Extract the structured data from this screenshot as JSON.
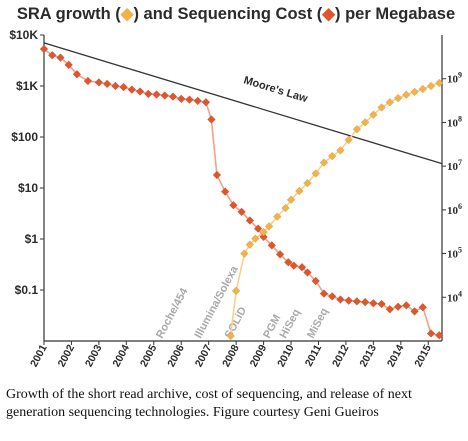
{
  "caption": "Growth of the short read archive, cost of sequencing, and release of next generation sequencing technologies. Figure courtesy Geni Gueiros",
  "chart_data": {
    "type": "line",
    "title": {
      "part1": "SRA growth (",
      "part2": ") and Sequencing Cost (",
      "part3": ") per Megabase"
    },
    "y_left_scale": "log",
    "y_left_range": [
      0.01,
      10000
    ],
    "y_left_ticks": [
      {
        "value": 10000,
        "label": "$10K"
      },
      {
        "value": 1000,
        "label": "$1K"
      },
      {
        "value": 100,
        "label": "$100"
      },
      {
        "value": 10,
        "label": "$10"
      },
      {
        "value": 1,
        "label": "$1"
      },
      {
        "value": 0.1,
        "label": "$0.1"
      }
    ],
    "y_right_scale": "log",
    "y_right_range": [
      1000,
      10000000000
    ],
    "y_right_ticks": [
      {
        "value": 10000,
        "base": "10",
        "exp": "4"
      },
      {
        "value": 100000,
        "base": "10",
        "exp": "5"
      },
      {
        "value": 1000000,
        "base": "10",
        "exp": "6"
      },
      {
        "value": 10000000,
        "base": "10",
        "exp": "7"
      },
      {
        "value": 100000000,
        "base": "10",
        "exp": "8"
      },
      {
        "value": 1000000000,
        "base": "10",
        "exp": "9"
      }
    ],
    "x_range": [
      2001,
      2015.5
    ],
    "x_ticks": [
      "2001",
      "2002",
      "2003",
      "2004",
      "2005",
      "2006",
      "2007",
      "2008",
      "2009",
      "2010",
      "2011",
      "2012",
      "2013",
      "2014",
      "2015"
    ],
    "technologies": [
      {
        "label": "Roche/454",
        "x": 2005.3
      },
      {
        "label": "Illumina/Solexa",
        "x": 2006.7
      },
      {
        "label": "SOLiD",
        "x": 2007.8
      },
      {
        "label": "PGM",
        "x": 2009.2
      },
      {
        "label": "HiSeq",
        "x": 2009.8
      },
      {
        "label": "MiSeq",
        "x": 2010.8
      }
    ],
    "moores_law": {
      "label": "Moore's Law",
      "x": [
        2001,
        2015.5
      ],
      "y": [
        7000,
        30
      ]
    },
    "colors": {
      "cost_marker": "#e0552a",
      "cost_line": "#f5a08a",
      "sra_marker": "#f2b24a",
      "sra_line": "#f7d18a",
      "moore_line": "#333333",
      "axis": "#333333"
    },
    "series": [
      {
        "axis": "left",
        "x": [
          2001.0,
          2001.3,
          2001.6,
          2001.9,
          2002.2,
          2002.6,
          2003.0,
          2003.3,
          2003.6,
          2003.9,
          2004.2,
          2004.5,
          2004.8,
          2005.1,
          2005.4,
          2005.7,
          2006.0,
          2006.3,
          2006.6,
          2006.9,
          2007.1,
          2007.3,
          2007.6,
          2007.9,
          2008.2,
          2008.5,
          2008.8,
          2009.0,
          2009.3,
          2009.6,
          2009.9,
          2010.1,
          2010.4,
          2010.6,
          2010.9,
          2011.2,
          2011.5,
          2011.8,
          2012.1,
          2012.4,
          2012.7,
          2013.0,
          2013.3,
          2013.6,
          2013.9,
          2014.2,
          2014.5,
          2014.8,
          2015.1,
          2015.4
        ],
        "y": [
          5300,
          4000,
          3600,
          2600,
          1700,
          1250,
          1180,
          1100,
          1000,
          950,
          850,
          780,
          700,
          680,
          650,
          620,
          560,
          540,
          510,
          480,
          220,
          18,
          8.5,
          4.6,
          3.4,
          2.3,
          1.6,
          1.1,
          0.75,
          0.5,
          0.35,
          0.3,
          0.28,
          0.22,
          0.15,
          0.085,
          0.075,
          0.065,
          0.062,
          0.06,
          0.058,
          0.055,
          0.053,
          0.042,
          0.047,
          0.05,
          0.038,
          0.046,
          0.014,
          0.013
        ]
      },
      {
        "axis": "right",
        "x": [
          2007.8,
          2008.0,
          2008.3,
          2008.5,
          2008.7,
          2009.0,
          2009.2,
          2009.5,
          2009.8,
          2010.0,
          2010.3,
          2010.6,
          2010.9,
          2011.2,
          2011.5,
          2011.8,
          2012.1,
          2012.4,
          2012.7,
          2013.0,
          2013.3,
          2013.6,
          2013.9,
          2014.2,
          2014.5,
          2014.8,
          2015.1,
          2015.4
        ],
        "y": [
          1300,
          14000,
          100000,
          160000,
          220000,
          310000,
          420000,
          700000,
          1100000,
          1700000,
          2700000,
          4100000,
          6800000,
          12000000,
          17000000,
          23000000,
          40000000,
          70000000,
          100000000,
          150000000,
          220000000,
          290000000,
          360000000,
          430000000,
          500000000,
          580000000,
          680000000,
          800000000
        ]
      }
    ]
  }
}
